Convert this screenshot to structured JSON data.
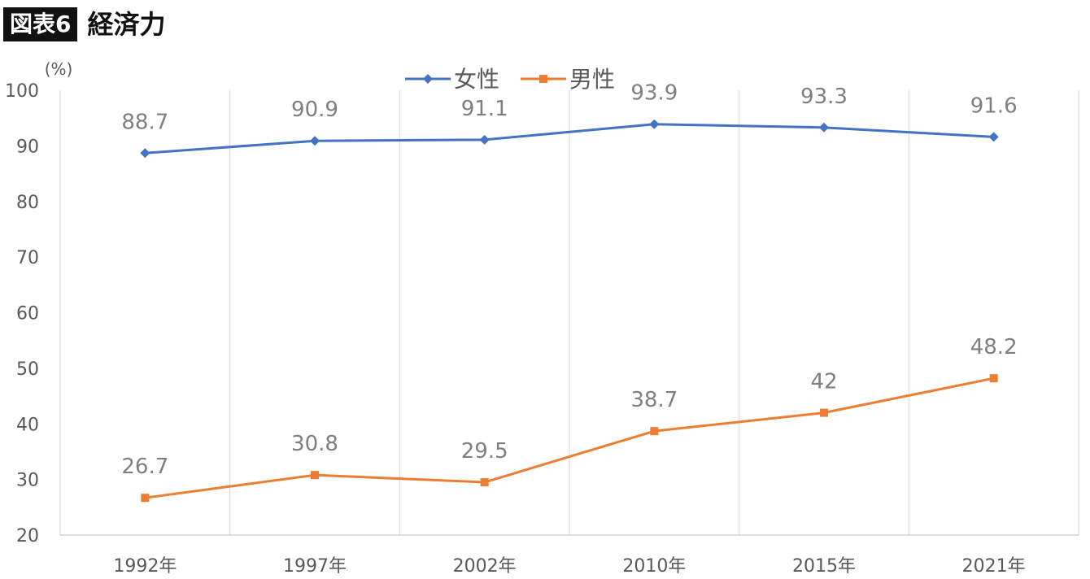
{
  "figure": {
    "badge": "図表6",
    "title": "経済力"
  },
  "chart_data": {
    "type": "line",
    "title": "経済力",
    "ylabel": "(%)",
    "xlabel": "",
    "ylim": [
      20,
      100
    ],
    "yticks": [
      20,
      30,
      40,
      50,
      60,
      70,
      80,
      90,
      100
    ],
    "categories": [
      "1992年",
      "1997年",
      "2002年",
      "2010年",
      "2015年",
      "2021年"
    ],
    "grid": "vertical",
    "legend_position": "top-center",
    "series": [
      {
        "name": "女性",
        "values": [
          88.7,
          90.9,
          91.1,
          93.9,
          93.3,
          91.6
        ],
        "labels": [
          "88.7",
          "90.9",
          "91.1",
          "93.9",
          "93.3",
          "91.6"
        ],
        "color": "#4472C4",
        "marker": "diamond"
      },
      {
        "name": "男性",
        "values": [
          26.7,
          30.8,
          29.5,
          38.7,
          42,
          48.2
        ],
        "labels": [
          "26.7",
          "30.8",
          "29.5",
          "38.7",
          "42",
          "48.2"
        ],
        "color": "#ED7D31",
        "marker": "square"
      }
    ]
  }
}
